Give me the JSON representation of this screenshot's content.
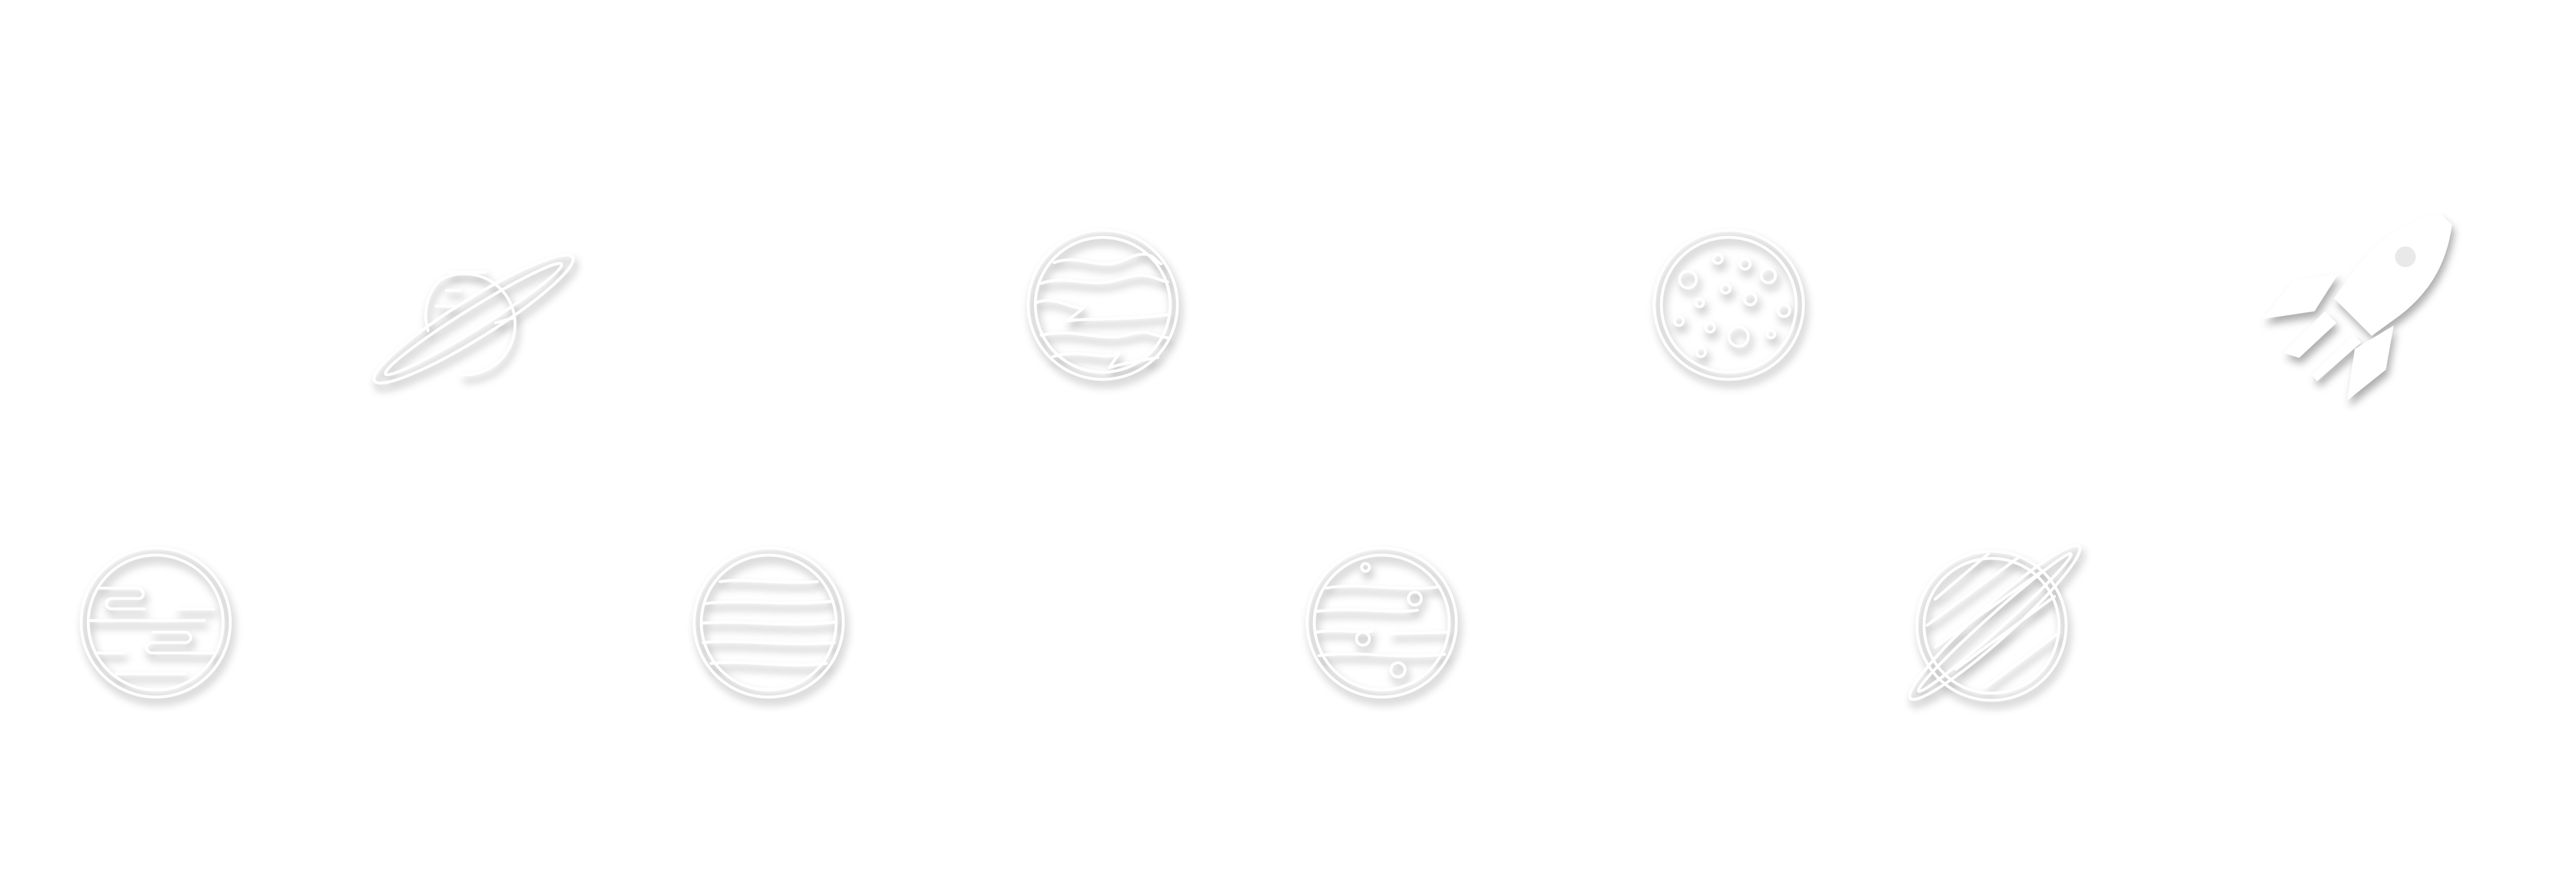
{
  "sheet": {
    "background": "#ffffff",
    "icon_color": "#ffffff",
    "shadow_color": "#8a8a8a",
    "style": "white line icons with drop shadow"
  },
  "icons": [
    {
      "name": "saturn-icon",
      "row": 1,
      "col": 1
    },
    {
      "name": "banded-planet-icon",
      "row": 1,
      "col": 2
    },
    {
      "name": "moon-icon",
      "row": 1,
      "col": 3
    },
    {
      "name": "rocket-icon",
      "row": 1,
      "col": 4
    },
    {
      "name": "cloudy-planet-icon",
      "row": 2,
      "col": 1
    },
    {
      "name": "striped-planet-icon",
      "row": 2,
      "col": 2
    },
    {
      "name": "spotted-planet-icon",
      "row": 2,
      "col": 3
    },
    {
      "name": "ringed-planet-icon",
      "row": 2,
      "col": 4
    }
  ]
}
